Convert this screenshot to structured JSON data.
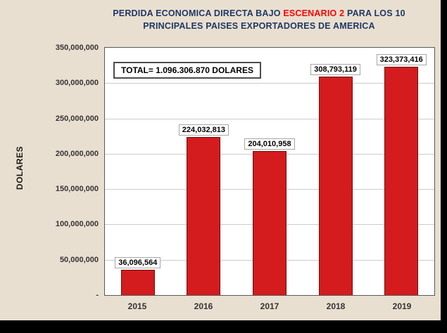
{
  "title": {
    "line1_prefix": "PERDIDA ECONOMICA DIRECTA BAJO ",
    "line1_highlight": "ESCENARIO 2",
    "line1_suffix": " PARA LOS 10",
    "line2": "PRINCIPALES PAISES EXPORTADORES DE AMERICA"
  },
  "chart_data": {
    "type": "bar",
    "title": "PERDIDA ECONOMICA DIRECTA BAJO ESCENARIO 2 PARA LOS 10 PRINCIPALES PAISES EXPORTADORES DE AMERICA",
    "categories": [
      "2015",
      "2016",
      "2017",
      "2018",
      "2019"
    ],
    "values": [
      36096564,
      224032813,
      204010958,
      308793119,
      323373416
    ],
    "data_labels": [
      "36,096,564",
      "224,032,813",
      "204,010,958",
      "308,793,119",
      "323,373,416"
    ],
    "ylabel": "DOLARES",
    "xlabel": "",
    "ylim": [
      0,
      350000000
    ],
    "ytick_step": 50000000,
    "ytick_labels": [
      "350,000,000",
      "300,000,000",
      "250,000,000",
      "200,000,000",
      "150,000,000",
      "100,000,000",
      "50,000,000",
      "-"
    ],
    "annotation": "TOTAL= 1.096.306.870 DOLARES",
    "grid": true,
    "legend_position": "none",
    "colors": {
      "bar_fill": "#d41b1e",
      "bar_border": "#6e100e",
      "title_text": "#1f3864",
      "title_highlight": "#ff0000",
      "background": "#e9dfd0",
      "plot_background": "#ffffff"
    }
  }
}
